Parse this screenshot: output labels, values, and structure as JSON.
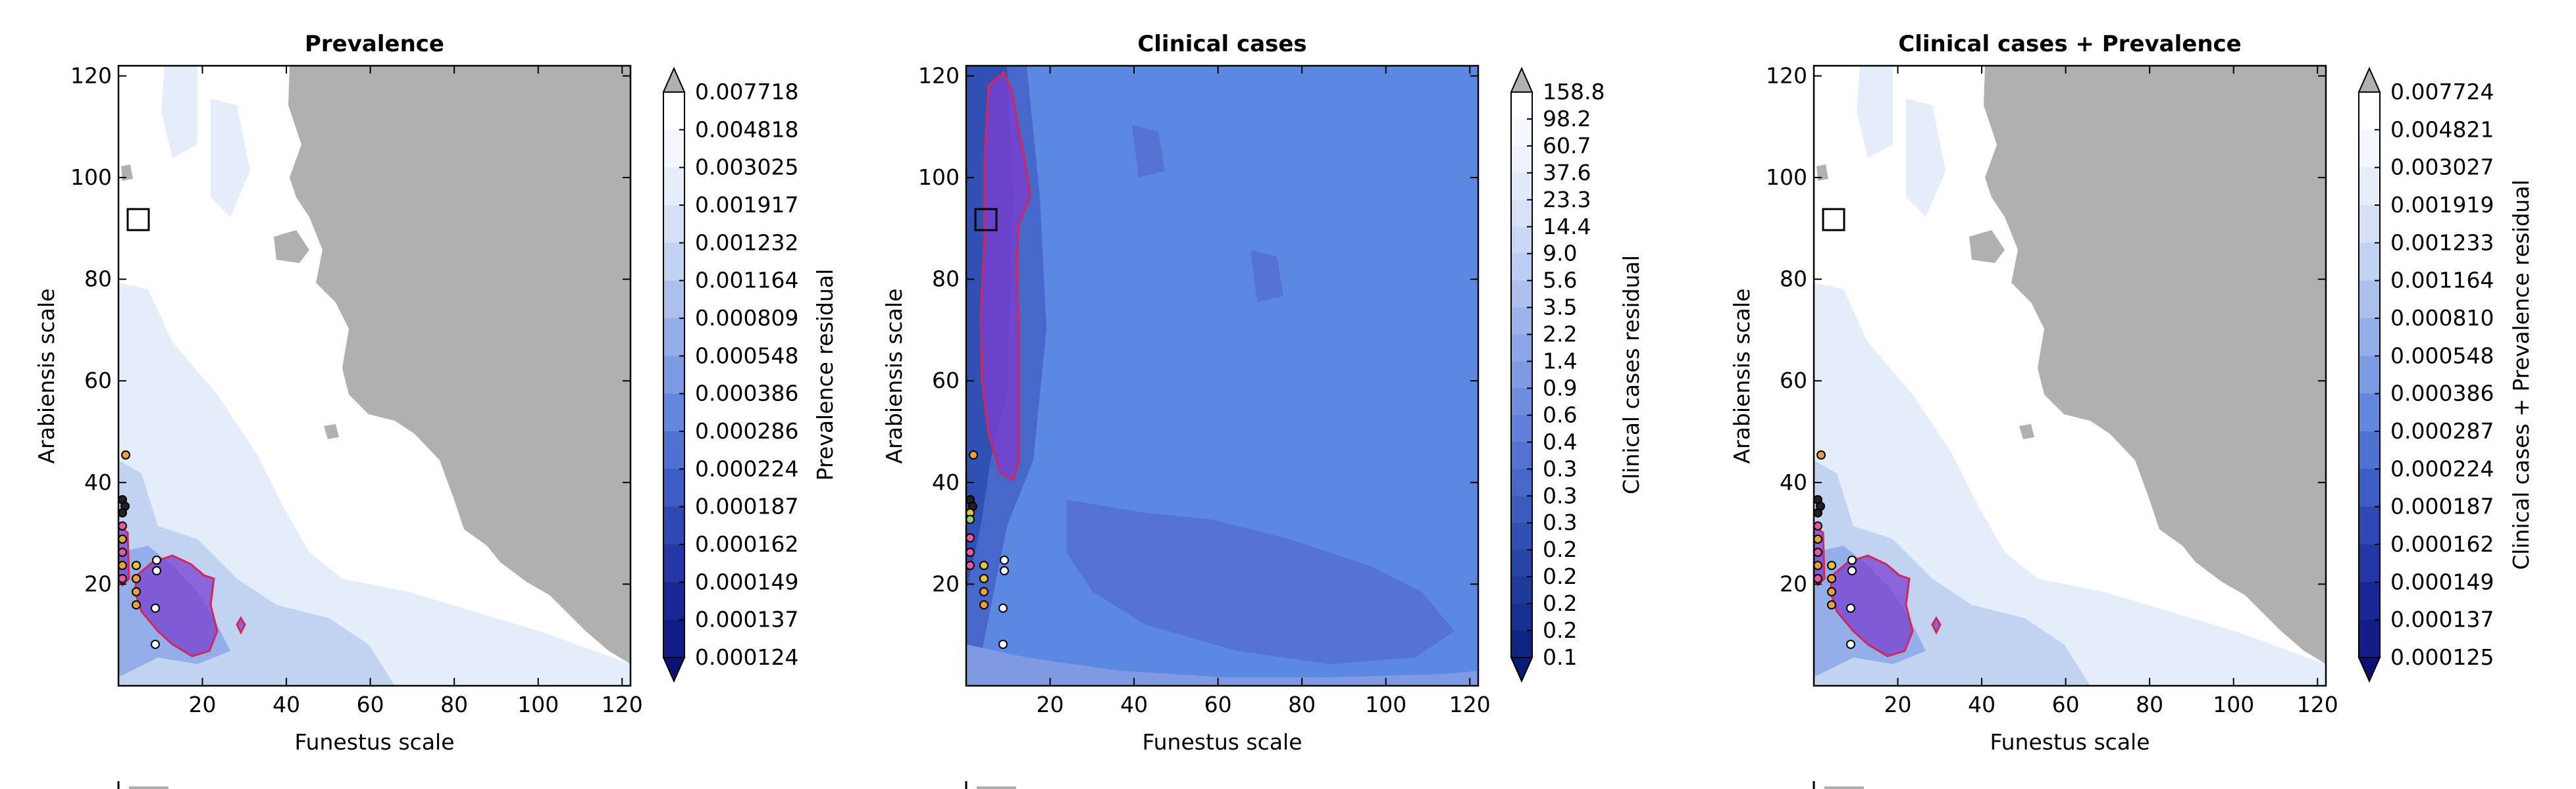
{
  "colors": {
    "land_grey": "#b0b0b0",
    "white": "#ffffff",
    "outline_red": "#d02858",
    "fill_purple": "#7a3fd0",
    "marker_yellow": "#e8c23a",
    "marker_orange": "#e8a03a",
    "marker_pink": "#e35aa0",
    "marker_white": "#ffffff",
    "marker_green": "#8fd06a",
    "marker_black": "#222222",
    "box_black": "#000000",
    "clinical_field": "#5b88e0"
  },
  "chart_data": [
    {
      "type": "heatmap",
      "title": "Prevalence",
      "xlabel": "Funestus scale",
      "ylabel": "Arabiensis scale",
      "xlim": [
        0,
        122
      ],
      "ylim": [
        0,
        122
      ],
      "xticks": [
        "20",
        "40",
        "60",
        "80",
        "100",
        "120"
      ],
      "yticks": [
        "20",
        "40",
        "60",
        "80",
        "100",
        "120"
      ],
      "colorbar": {
        "label": "Prevalence residual",
        "levels": [
          "0.007718",
          "0.004818",
          "0.003025",
          "0.001917",
          "0.001232",
          "0.001164",
          "0.000809",
          "0.000548",
          "0.000386",
          "0.000286",
          "0.000224",
          "0.000187",
          "0.000162",
          "0.000149",
          "0.000137",
          "0.000124"
        ],
        "colors": [
          "#ffffff",
          "#f4f7fd",
          "#e6edfa",
          "#d5e0f6",
          "#c2d2f1",
          "#abc1ec",
          "#93aee8",
          "#7b9be3",
          "#6387dc",
          "#4f72d2",
          "#3d5cc4",
          "#2f48b4",
          "#2437a4",
          "#1a2895",
          "#111c86",
          "#0a1278"
        ],
        "over_color": "#b0b0b0",
        "under_color": "#0a1278"
      },
      "legend": "bottom-left"
    },
    {
      "type": "heatmap",
      "title": "Clinical cases",
      "xlabel": "Funestus scale",
      "ylabel": "Arabiensis scale",
      "xlim": [
        0,
        122
      ],
      "ylim": [
        0,
        122
      ],
      "xticks": [
        "20",
        "40",
        "60",
        "80",
        "100",
        "120"
      ],
      "yticks": [
        "20",
        "40",
        "60",
        "80",
        "100",
        "120"
      ],
      "colorbar": {
        "label": "Clinical cases residual",
        "levels": [
          "158.8",
          "98.2",
          "60.7",
          "37.6",
          "23.3",
          "14.4",
          "9.0",
          "5.6",
          "3.5",
          "2.2",
          "1.4",
          "0.9",
          "0.6",
          "0.4",
          "0.3",
          "0.3",
          "0.3",
          "0.2",
          "0.2",
          "0.2",
          "0.2",
          "0.1"
        ],
        "colors": [
          "#ffffff",
          "#f6f8fd",
          "#edf2fc",
          "#e2eafa",
          "#d7e2f8",
          "#cad8f5",
          "#bcccf2",
          "#adc0ee",
          "#9eb3eb",
          "#8ea6e7",
          "#7f99e3",
          "#6f8cdf",
          "#6180da",
          "#5473d3",
          "#4867ca",
          "#3c5bbf",
          "#3150b4",
          "#2745a8",
          "#1e3a9b",
          "#16308f",
          "#0e2682",
          "#081c76"
        ],
        "over_color": "#b0b0b0",
        "under_color": "#081c76"
      },
      "legend": "bottom-left"
    },
    {
      "type": "heatmap",
      "title": "Clinical cases + Prevalence",
      "xlabel": "Funestus scale",
      "ylabel": "Arabiensis scale",
      "xlim": [
        0,
        122
      ],
      "ylim": [
        0,
        122
      ],
      "xticks": [
        "20",
        "40",
        "60",
        "80",
        "100",
        "120"
      ],
      "yticks": [
        "20",
        "40",
        "60",
        "80",
        "100",
        "120"
      ],
      "colorbar": {
        "label": "Clinical cases + Prevalence residual",
        "levels": [
          "0.007724",
          "0.004821",
          "0.003027",
          "0.001919",
          "0.001233",
          "0.001164",
          "0.000810",
          "0.000548",
          "0.000386",
          "0.000287",
          "0.000224",
          "0.000187",
          "0.000162",
          "0.000149",
          "0.000137",
          "0.000125"
        ],
        "colors": [
          "#ffffff",
          "#f4f7fd",
          "#e6edfa",
          "#d5e0f6",
          "#c2d2f1",
          "#abc1ec",
          "#93aee8",
          "#7b9be3",
          "#6387dc",
          "#4f72d2",
          "#3d5cc4",
          "#2f48b4",
          "#2437a4",
          "#1a2895",
          "#111c86",
          "#0a1278"
        ],
        "over_color": "#b0b0b0",
        "under_color": "#0a1278"
      },
      "legend": "bottom-left"
    }
  ]
}
